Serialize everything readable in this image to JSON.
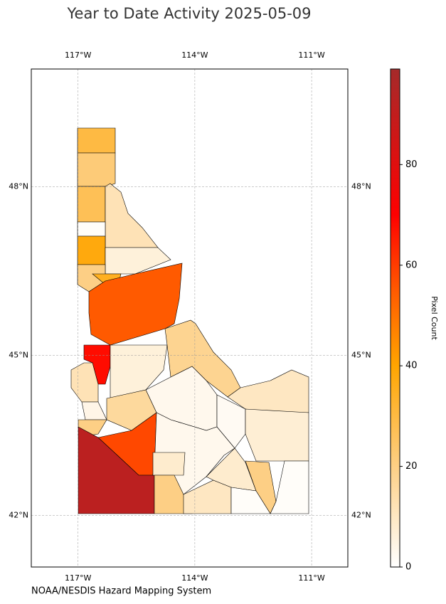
{
  "chart_data": {
    "type": "choropleth",
    "title": "Year to Date Activity 2025-05-09",
    "source": "NOAA/NESDIS Hazard Mapping System",
    "colorbar_label": "Pixel Count",
    "xlim": [
      -118.2,
      -110.07
    ],
    "ylim": [
      41,
      50
    ],
    "xticks": [
      {
        "value": -117,
        "label": "117°W"
      },
      {
        "value": -114,
        "label": "114°W"
      },
      {
        "value": -111,
        "label": "111°W"
      }
    ],
    "yticks": [
      {
        "value": 48,
        "label": "48°N"
      },
      {
        "value": 45,
        "label": "45°N"
      },
      {
        "value": 42,
        "label": "42°N"
      }
    ],
    "grid": true,
    "clim": [
      0,
      99
    ],
    "cticks": [
      0,
      20,
      40,
      60,
      80
    ],
    "colormap": [
      {
        "value": 0,
        "color": "#ffffff"
      },
      {
        "value": 20,
        "color": "#fdcf85"
      },
      {
        "value": 40,
        "color": "#ffa500"
      },
      {
        "value": 55,
        "color": "#ff5a00"
      },
      {
        "value": 70,
        "color": "#ff0000"
      },
      {
        "value": 99,
        "color": "#a52a2a"
      }
    ],
    "values": [
      30,
      22,
      27,
      12,
      1,
      38,
      6,
      20,
      35,
      55,
      68,
      12,
      6,
      18,
      3,
      4,
      16,
      20,
      58,
      92,
      3,
      8,
      20,
      10,
      8,
      10,
      2,
      7,
      20,
      1,
      1
    ]
  }
}
